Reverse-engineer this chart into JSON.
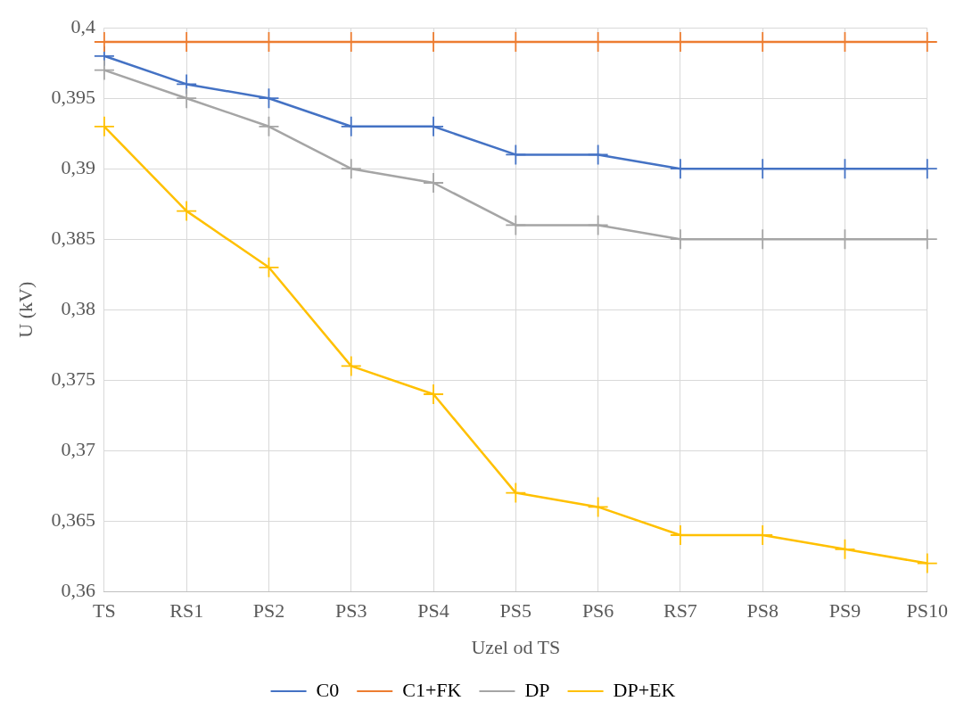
{
  "chart_data": {
    "type": "line",
    "xlabel": "Uzel od TS",
    "ylabel": "U (kV)",
    "categories": [
      "TS",
      "RS1",
      "PS2",
      "PS3",
      "PS4",
      "PS5",
      "PS6",
      "RS7",
      "PS8",
      "PS9",
      "PS10"
    ],
    "series": [
      {
        "name": "C0",
        "color": "#4472c4",
        "values": [
          0.398,
          0.396,
          0.395,
          0.393,
          0.393,
          0.391,
          0.391,
          0.39,
          0.39,
          0.39,
          0.39
        ]
      },
      {
        "name": "C1+FK",
        "color": "#ed7d31",
        "values": [
          0.399,
          0.399,
          0.399,
          0.399,
          0.399,
          0.399,
          0.399,
          0.399,
          0.399,
          0.399,
          0.399
        ]
      },
      {
        "name": "DP",
        "color": "#a5a5a5",
        "values": [
          0.397,
          0.395,
          0.393,
          0.39,
          0.389,
          0.386,
          0.386,
          0.385,
          0.385,
          0.385,
          0.385
        ]
      },
      {
        "name": "DP+EK",
        "color": "#ffc000",
        "values": [
          0.393,
          0.387,
          0.383,
          0.376,
          0.374,
          0.367,
          0.366,
          0.364,
          0.364,
          0.363,
          0.362
        ]
      }
    ],
    "ylim": [
      0.36,
      0.4
    ],
    "yticks": [
      {
        "value": 0.36,
        "label": "0,36"
      },
      {
        "value": 0.365,
        "label": "0,365"
      },
      {
        "value": 0.37,
        "label": "0,37"
      },
      {
        "value": 0.375,
        "label": "0,375"
      },
      {
        "value": 0.38,
        "label": "0,38"
      },
      {
        "value": 0.385,
        "label": "0,385"
      },
      {
        "value": 0.39,
        "label": "0,39"
      },
      {
        "value": 0.395,
        "label": "0,395"
      },
      {
        "value": 0.4,
        "label": "0,4"
      }
    ],
    "grid": true,
    "legend": "bottom",
    "marker": "cross",
    "line_style": "solid"
  }
}
